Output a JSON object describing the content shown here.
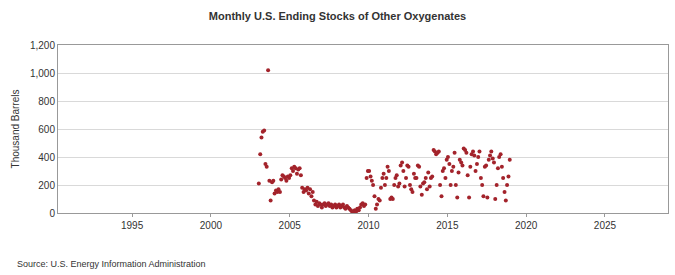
{
  "chart_data": {
    "type": "scatter",
    "title": "Monthly U.S. Ending Stocks of Other Oxygenates",
    "y_label": "Thousand Barrels",
    "annotations": [
      "Source: U.S. Energy Information Administration"
    ],
    "marker": "circle",
    "color": "#a3232b",
    "grid": true,
    "xlim": [
      1990.3,
      2029
    ],
    "xticks": [
      1995,
      2000,
      2005,
      2010,
      2015,
      2020,
      2025
    ],
    "ylim": [
      0,
      1200
    ],
    "yticks": [
      0,
      200,
      400,
      600,
      800,
      {
        "value": 1000,
        "label": "1,000"
      },
      {
        "value": 1200,
        "label": "1,200"
      }
    ],
    "x": [
      2003.04,
      2003.13,
      2003.21,
      2003.29,
      2003.38,
      2003.46,
      2003.54,
      2003.63,
      2003.71,
      2003.79,
      2003.88,
      2003.96,
      2004.04,
      2004.13,
      2004.21,
      2004.29,
      2004.38,
      2004.46,
      2004.54,
      2004.63,
      2004.71,
      2004.79,
      2004.88,
      2004.96,
      2005.04,
      2005.13,
      2005.21,
      2005.29,
      2005.38,
      2005.46,
      2005.54,
      2005.63,
      2005.71,
      2005.79,
      2005.88,
      2005.96,
      2006.04,
      2006.13,
      2006.21,
      2006.29,
      2006.38,
      2006.46,
      2006.54,
      2006.63,
      2006.71,
      2006.79,
      2006.88,
      2006.96,
      2007.04,
      2007.13,
      2007.21,
      2007.29,
      2007.38,
      2007.46,
      2007.54,
      2007.63,
      2007.71,
      2007.79,
      2007.88,
      2007.96,
      2008.04,
      2008.13,
      2008.21,
      2008.29,
      2008.38,
      2008.46,
      2008.54,
      2008.63,
      2008.71,
      2008.79,
      2008.88,
      2008.96,
      2009.04,
      2009.13,
      2009.21,
      2009.29,
      2009.38,
      2009.46,
      2009.54,
      2009.63,
      2009.71,
      2009.79,
      2009.88,
      2009.96,
      2010.04,
      2010.13,
      2010.21,
      2010.29,
      2010.38,
      2010.46,
      2010.54,
      2010.63,
      2010.71,
      2010.79,
      2010.88,
      2010.96,
      2011.04,
      2011.13,
      2011.21,
      2011.29,
      2011.38,
      2011.46,
      2011.54,
      2011.63,
      2011.71,
      2011.79,
      2011.88,
      2011.96,
      2012.04,
      2012.13,
      2012.21,
      2012.29,
      2012.38,
      2012.46,
      2012.54,
      2012.63,
      2012.71,
      2012.79,
      2012.88,
      2012.96,
      2013.04,
      2013.13,
      2013.21,
      2013.29,
      2013.38,
      2013.46,
      2013.54,
      2013.63,
      2013.71,
      2013.79,
      2013.88,
      2013.96,
      2014.04,
      2014.13,
      2014.21,
      2014.29,
      2014.38,
      2014.46,
      2014.54,
      2014.63,
      2014.71,
      2014.79,
      2014.88,
      2014.96,
      2015.04,
      2015.13,
      2015.21,
      2015.29,
      2015.38,
      2015.46,
      2015.54,
      2015.63,
      2015.71,
      2015.79,
      2015.88,
      2015.96,
      2016.04,
      2016.13,
      2016.21,
      2016.29,
      2016.38,
      2016.46,
      2016.54,
      2016.63,
      2016.71,
      2016.79,
      2016.88,
      2016.96,
      2017.04,
      2017.13,
      2017.21,
      2017.29,
      2017.38,
      2017.46,
      2017.54,
      2017.63,
      2017.71,
      2017.79,
      2017.88,
      2017.96,
      2018.04,
      2018.13,
      2018.21,
      2018.29,
      2018.38,
      2018.46,
      2018.54,
      2018.63,
      2018.71,
      2018.79,
      2018.88,
      2018.96
    ],
    "values": [
      210,
      420,
      540,
      580,
      590,
      350,
      330,
      1020,
      230,
      90,
      220,
      230,
      140,
      160,
      150,
      170,
      150,
      240,
      270,
      260,
      250,
      230,
      260,
      250,
      270,
      320,
      300,
      330,
      320,
      280,
      310,
      320,
      270,
      180,
      150,
      170,
      160,
      180,
      140,
      170,
      120,
      150,
      90,
      60,
      80,
      50,
      70,
      60,
      40,
      60,
      70,
      50,
      60,
      70,
      50,
      60,
      40,
      50,
      60,
      40,
      50,
      60,
      40,
      50,
      60,
      40,
      30,
      50,
      40,
      30,
      20,
      10,
      10,
      20,
      10,
      30,
      20,
      40,
      60,
      70,
      50,
      60,
      250,
      300,
      300,
      260,
      230,
      200,
      120,
      30,
      60,
      100,
      90,
      180,
      250,
      280,
      200,
      250,
      330,
      300,
      100,
      110,
      100,
      200,
      250,
      270,
      190,
      210,
      340,
      360,
      300,
      190,
      250,
      340,
      330,
      200,
      170,
      150,
      280,
      250,
      250,
      340,
      330,
      190,
      130,
      210,
      220,
      250,
      170,
      290,
      190,
      250,
      260,
      450,
      440,
      420,
      430,
      440,
      200,
      120,
      300,
      320,
      250,
      380,
      400,
      350,
      200,
      300,
      330,
      430,
      200,
      110,
      290,
      380,
      360,
      340,
      460,
      450,
      430,
      270,
      110,
      330,
      420,
      440,
      410,
      300,
      350,
      400,
      440,
      250,
      200,
      120,
      330,
      340,
      110,
      380,
      410,
      440,
      390,
      360,
      100,
      200,
      320,
      400,
      420,
      330,
      250,
      150,
      90,
      200,
      260,
      380
    ]
  }
}
